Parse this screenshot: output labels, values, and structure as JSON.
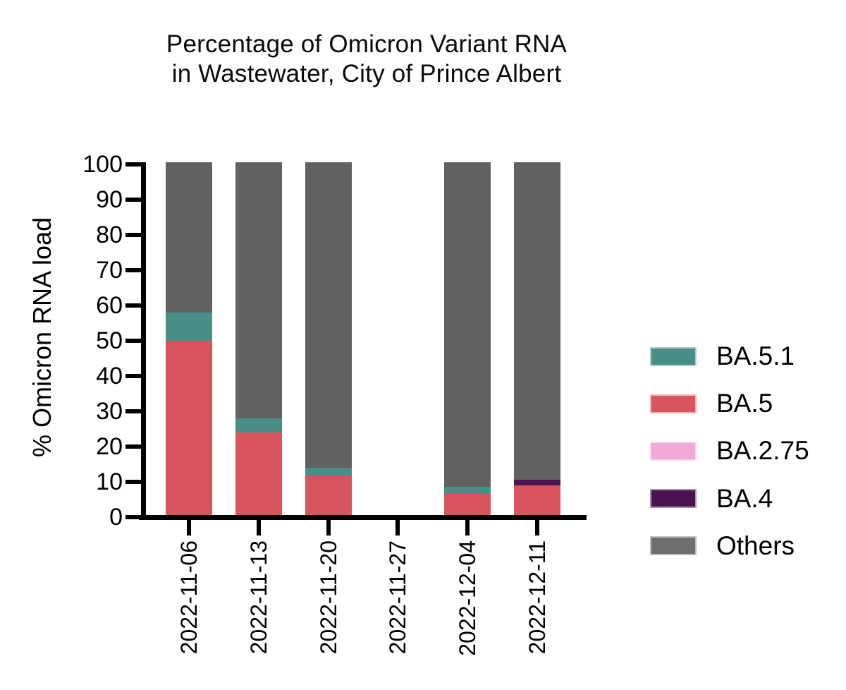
{
  "title": {
    "line1": "Percentage of Omicron Variant RNA",
    "line2": "in Wastewater, City of Prince Albert"
  },
  "y_axis": {
    "label": "% Omicron RNA load"
  },
  "x_axis": {
    "labels": [
      "2022-11-06",
      "2022-11-13",
      "2022-11-20",
      "2022-11-27",
      "2022-12-04",
      "2022-12-11"
    ]
  },
  "legend": {
    "items": [
      {
        "label": "BA.5.1",
        "color": "#4A8E88"
      },
      {
        "label": "BA.5",
        "color": "#D9555D"
      },
      {
        "label": "BA.2.75",
        "color": "#F0AAD6"
      },
      {
        "label": "BA.4",
        "color": "#4A124E"
      },
      {
        "label": "Others",
        "color": "#6F6F6F"
      }
    ]
  },
  "chart_data": {
    "type": "bar",
    "stacked": true,
    "title": "Percentage of Omicron Variant RNA in Wastewater, City of Prince Albert",
    "categories": [
      "2022-11-06",
      "2022-11-13",
      "2022-11-20",
      "2022-11-27",
      "2022-12-04",
      "2022-12-11"
    ],
    "series": [
      {
        "name": "BA.5.1",
        "color": "#4A8E88",
        "values": [
          8,
          4,
          2.5,
          0,
          2,
          0
        ]
      },
      {
        "name": "BA.5",
        "color": "#D9555D",
        "values": [
          49.5,
          23.5,
          11,
          0,
          6,
          8.5
        ]
      },
      {
        "name": "BA.2.75",
        "color": "#F0AAD6",
        "values": [
          0,
          0,
          0,
          0,
          0,
          0
        ]
      },
      {
        "name": "BA.4",
        "color": "#4A124E",
        "values": [
          0,
          0,
          0,
          0,
          0,
          1.5
        ]
      },
      {
        "name": "Others",
        "color": "#616161",
        "values": [
          42.5,
          72.5,
          86.5,
          0,
          92,
          90
        ]
      }
    ],
    "stack_order_bottom_to_top": [
      "BA.5",
      "BA.5.1",
      "BA.2.75",
      "BA.4",
      "Others"
    ],
    "xlabel": "",
    "ylabel": "% Omicron RNA load",
    "ylim": [
      0,
      100
    ],
    "y_ticks": [
      0,
      10,
      20,
      30,
      40,
      50,
      60,
      70,
      80,
      90,
      100
    ],
    "grid": false,
    "legend_position": "right"
  }
}
